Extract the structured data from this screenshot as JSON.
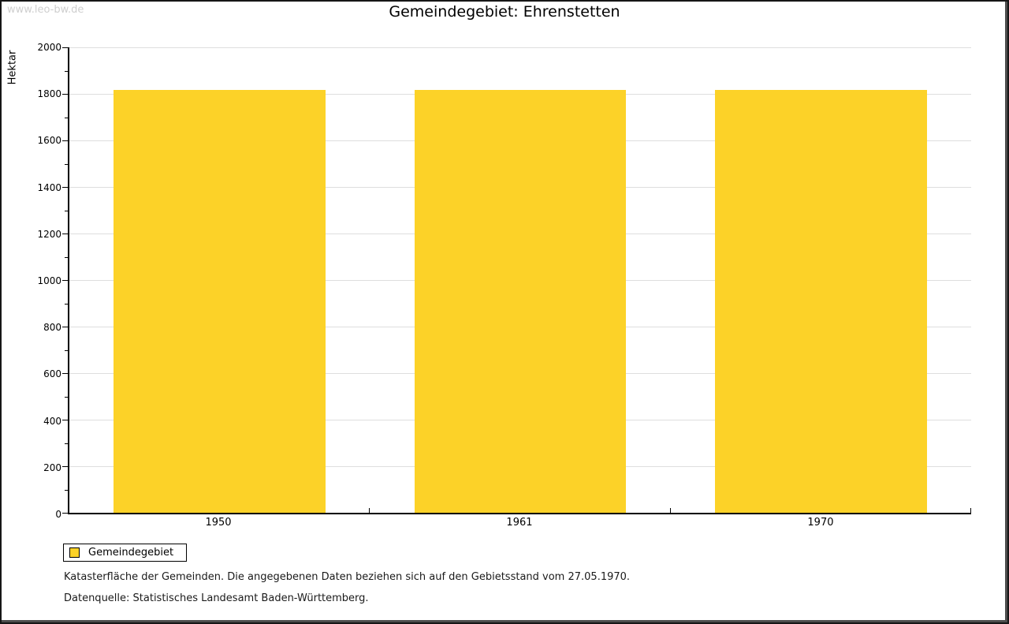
{
  "watermark": "www.leo-bw.de",
  "title": "Gemeindegebiet: Ehrenstetten",
  "chart_data": {
    "type": "bar",
    "title": "Gemeindegebiet: Ehrenstetten",
    "categories": [
      "1950",
      "1961",
      "1970"
    ],
    "series": [
      {
        "name": "Gemeindegebiet",
        "values": [
          1817,
          1817,
          1817
        ]
      }
    ],
    "xlabel": "",
    "ylabel": "Hektar",
    "ylim": [
      0,
      2000
    ],
    "yticks": [
      0,
      200,
      400,
      600,
      800,
      1000,
      1200,
      1400,
      1600,
      1800,
      2000
    ],
    "minor_tick_step": 100,
    "grid": true,
    "legend_position": "bottom-left",
    "bar_color": "#FCD228"
  },
  "legend": {
    "label": "Gemeindegebiet",
    "swatch_color": "#FCD228"
  },
  "footer": {
    "line1": "Katasterfläche der Gemeinden. Die angegebenen Daten beziehen sich auf den Gebietsstand vom 27.05.1970.",
    "line2": "Datenquelle: Statistisches Landesamt Baden-Württemberg."
  },
  "colors": {
    "bar": "#FCD228",
    "gridline": "#dedede",
    "axis": "#000000",
    "watermark": "#cfcfcf",
    "background": "#ffffff"
  }
}
